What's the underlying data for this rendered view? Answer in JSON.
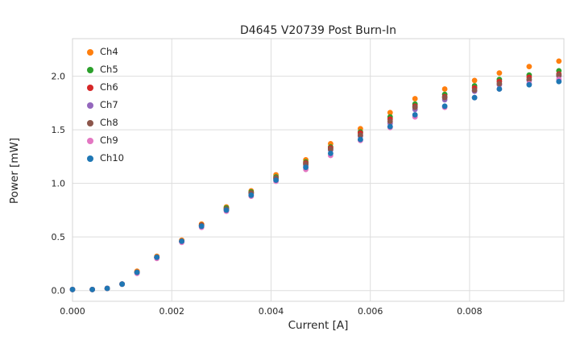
{
  "chart_data": {
    "type": "scatter",
    "title": "D4645 V20739 Post Burn-In",
    "xlabel": "Current [A]",
    "ylabel": "Power [mW]",
    "grid": true,
    "legend_position": "upper left",
    "xlim": [
      0.0,
      0.0099
    ],
    "ylim": [
      -0.1,
      2.35
    ],
    "xticks": [
      0.0,
      0.002,
      0.004,
      0.006,
      0.008
    ],
    "xtick_labels": [
      "0.000",
      "0.002",
      "0.004",
      "0.006",
      "0.008"
    ],
    "yticks": [
      0.0,
      0.5,
      1.0,
      1.5,
      2.0
    ],
    "ytick_labels": [
      "0.0",
      "0.5",
      "1.0",
      "1.5",
      "2.0"
    ],
    "x": [
      0.0,
      0.0004,
      0.0007,
      0.001,
      0.0013,
      0.0017,
      0.0022,
      0.0026,
      0.0031,
      0.0036,
      0.0041,
      0.0047,
      0.0052,
      0.0058,
      0.0064,
      0.0069,
      0.0075,
      0.0081,
      0.0086,
      0.0092,
      0.0098
    ],
    "series": [
      {
        "name": "Ch4",
        "color": "#ff7f0e",
        "y": [
          0.01,
          0.01,
          0.02,
          0.06,
          0.18,
          0.32,
          0.47,
          0.62,
          0.78,
          0.93,
          1.08,
          1.22,
          1.37,
          1.51,
          1.66,
          1.79,
          1.88,
          1.96,
          2.03,
          2.09,
          2.14
        ]
      },
      {
        "name": "Ch5",
        "color": "#2ca02c",
        "y": [
          0.01,
          0.01,
          0.02,
          0.06,
          0.17,
          0.31,
          0.46,
          0.61,
          0.77,
          0.92,
          1.06,
          1.2,
          1.34,
          1.48,
          1.62,
          1.74,
          1.83,
          1.91,
          1.97,
          2.01,
          2.05
        ]
      },
      {
        "name": "Ch6",
        "color": "#d62728",
        "y": [
          0.01,
          0.01,
          0.02,
          0.06,
          0.17,
          0.31,
          0.46,
          0.61,
          0.76,
          0.91,
          1.05,
          1.19,
          1.33,
          1.47,
          1.6,
          1.72,
          1.81,
          1.89,
          1.95,
          1.99,
          2.02
        ]
      },
      {
        "name": "Ch7",
        "color": "#9467bd",
        "y": [
          0.01,
          0.01,
          0.02,
          0.06,
          0.17,
          0.31,
          0.46,
          0.6,
          0.75,
          0.9,
          1.04,
          1.17,
          1.31,
          1.44,
          1.56,
          1.69,
          1.78,
          1.86,
          1.92,
          1.96,
          2.0
        ]
      },
      {
        "name": "Ch8",
        "color": "#8c564b",
        "y": [
          0.01,
          0.01,
          0.02,
          0.06,
          0.17,
          0.31,
          0.46,
          0.61,
          0.76,
          0.91,
          1.05,
          1.18,
          1.32,
          1.45,
          1.58,
          1.71,
          1.8,
          1.87,
          1.93,
          1.97,
          2.01
        ]
      },
      {
        "name": "Ch9",
        "color": "#e377c2",
        "y": [
          0.01,
          0.01,
          0.02,
          0.06,
          0.16,
          0.3,
          0.45,
          0.59,
          0.74,
          0.88,
          1.02,
          1.13,
          1.26,
          1.4,
          1.52,
          1.62,
          1.71,
          1.8,
          1.88,
          1.93,
          1.97
        ]
      },
      {
        "name": "Ch10",
        "color": "#1f77b4",
        "y": [
          0.01,
          0.01,
          0.02,
          0.06,
          0.17,
          0.31,
          0.46,
          0.6,
          0.75,
          0.89,
          1.03,
          1.15,
          1.28,
          1.41,
          1.53,
          1.64,
          1.72,
          1.8,
          1.88,
          1.92,
          1.95
        ]
      }
    ],
    "style": {
      "grid_color": "#dddddd",
      "border_color": "#d4d4d4",
      "tick_label_color": "#262626",
      "marker_radius": 3.4
    }
  }
}
